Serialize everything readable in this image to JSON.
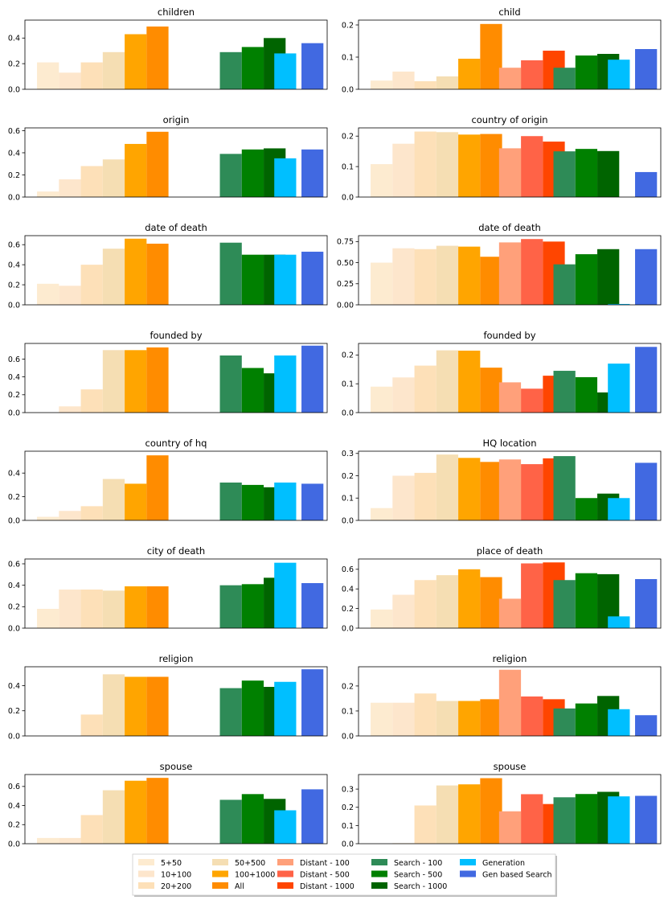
{
  "legend": [
    {
      "label": "5+50",
      "color": "#fdebd0"
    },
    {
      "label": "10+100",
      "color": "#fde6cc"
    },
    {
      "label": "20+200",
      "color": "#fde0b8"
    },
    {
      "label": "50+500",
      "color": "#f5deb3"
    },
    {
      "label": "100+1000",
      "color": "#ffa500"
    },
    {
      "label": "All",
      "color": "#ff8c00"
    },
    {
      "label": "Distant - 100",
      "color": "#ffa07a"
    },
    {
      "label": "Distant - 500",
      "color": "#ff6347"
    },
    {
      "label": "Distant - 1000",
      "color": "#ff4500"
    },
    {
      "label": "Search - 100",
      "color": "#2e8b57"
    },
    {
      "label": "Search - 500",
      "color": "#008000"
    },
    {
      "label": "Search - 1000",
      "color": "#006400"
    },
    {
      "label": "Generation",
      "color": "#00bfff"
    },
    {
      "label": "Gen based Search",
      "color": "#4169e1"
    }
  ],
  "chart_data": [
    {
      "type": "bar",
      "title": "children",
      "ylim": [
        0,
        0.54
      ],
      "yticks": [
        "0.0",
        "0.2",
        "0.4"
      ],
      "ytick_values": [
        0,
        0.2,
        0.4
      ],
      "values": [
        0.21,
        0.13,
        0.21,
        0.29,
        0.43,
        0.49,
        null,
        null,
        null,
        0.29,
        0.33,
        0.4,
        0.28,
        0.36
      ]
    },
    {
      "type": "bar",
      "title": "child",
      "ylim": [
        0,
        0.215
      ],
      "yticks": [
        "0.0",
        "0.1",
        "0.2"
      ],
      "ytick_values": [
        0,
        0.1,
        0.2
      ],
      "values": [
        0.027,
        0.055,
        0.025,
        0.04,
        0.095,
        0.203,
        0.067,
        0.09,
        0.12,
        0.067,
        0.105,
        0.11,
        0.092,
        0.125
      ]
    },
    {
      "type": "bar",
      "title": "origin",
      "ylim": [
        0,
        0.625
      ],
      "yticks": [
        "0.0",
        "0.2",
        "0.4",
        "0.6"
      ],
      "ytick_values": [
        0,
        0.2,
        0.4,
        0.6
      ],
      "values": [
        0.05,
        0.16,
        0.28,
        0.34,
        0.48,
        0.59,
        null,
        null,
        null,
        0.39,
        0.43,
        0.44,
        0.35,
        0.43
      ]
    },
    {
      "type": "bar",
      "title": "country of origin",
      "ylim": [
        0,
        0.227
      ],
      "yticks": [
        "0.0",
        "0.1",
        "0.2"
      ],
      "ytick_values": [
        0,
        0.1,
        0.2
      ],
      "values": [
        0.108,
        0.175,
        0.215,
        0.213,
        0.205,
        0.207,
        0.16,
        0.2,
        0.182,
        0.15,
        0.158,
        0.151,
        null,
        0.082
      ]
    },
    {
      "type": "bar",
      "title": "date of death",
      "ylim": [
        0,
        0.69
      ],
      "yticks": [
        "0.0",
        "0.2",
        "0.4",
        "0.6"
      ],
      "ytick_values": [
        0,
        0.2,
        0.4,
        0.6
      ],
      "values": [
        0.21,
        0.19,
        0.4,
        0.56,
        0.66,
        0.61,
        null,
        null,
        null,
        0.62,
        0.5,
        0.5,
        0.5,
        0.53
      ]
    },
    {
      "type": "bar",
      "title": "date of death",
      "ylim": [
        0,
        0.82
      ],
      "yticks": [
        "0.00",
        "0.25",
        "0.50",
        "0.75"
      ],
      "ytick_values": [
        0,
        0.25,
        0.5,
        0.75
      ],
      "values": [
        0.5,
        0.67,
        0.66,
        0.7,
        0.69,
        0.57,
        0.74,
        0.78,
        0.75,
        0.48,
        0.6,
        0.66,
        0.01,
        0.66
      ]
    },
    {
      "type": "bar",
      "title": "founded by",
      "ylim": [
        0,
        0.775
      ],
      "yticks": [
        "0.0",
        "0.2",
        "0.4",
        "0.6"
      ],
      "ytick_values": [
        0,
        0.2,
        0.4,
        0.6
      ],
      "values": [
        null,
        0.07,
        0.26,
        0.7,
        0.7,
        0.73,
        null,
        null,
        null,
        0.64,
        0.5,
        0.44,
        0.64,
        0.75
      ]
    },
    {
      "type": "bar",
      "title": "founded by",
      "ylim": [
        0,
        0.24
      ],
      "yticks": [
        "0.0",
        "0.1",
        "0.2"
      ],
      "ytick_values": [
        0,
        0.1,
        0.2
      ],
      "values": [
        0.09,
        0.122,
        0.163,
        0.216,
        0.215,
        0.156,
        0.105,
        0.083,
        0.128,
        0.145,
        0.123,
        0.07,
        0.17,
        0.228
      ]
    },
    {
      "type": "bar",
      "title": "country of hq",
      "ylim": [
        0,
        0.585
      ],
      "yticks": [
        "0.0",
        "0.2",
        "0.4"
      ],
      "ytick_values": [
        0,
        0.2,
        0.4
      ],
      "values": [
        0.03,
        0.08,
        0.12,
        0.35,
        0.31,
        0.55,
        null,
        null,
        null,
        0.32,
        0.3,
        0.28,
        0.32,
        0.31
      ]
    },
    {
      "type": "bar",
      "title": "HQ location",
      "ylim": [
        0,
        0.31
      ],
      "yticks": [
        "0.0",
        "0.1",
        "0.2",
        "0.3"
      ],
      "ytick_values": [
        0,
        0.1,
        0.2,
        0.3
      ],
      "values": [
        0.055,
        0.2,
        0.213,
        0.295,
        0.28,
        0.262,
        0.273,
        0.252,
        0.278,
        0.288,
        0.1,
        0.12,
        0.1,
        0.258
      ]
    },
    {
      "type": "bar",
      "title": "city of death",
      "ylim": [
        0,
        0.645
      ],
      "yticks": [
        "0.0",
        "0.2",
        "0.4",
        "0.6"
      ],
      "ytick_values": [
        0,
        0.2,
        0.4,
        0.6
      ],
      "values": [
        0.18,
        0.36,
        0.36,
        0.35,
        0.39,
        0.39,
        null,
        null,
        null,
        0.4,
        0.41,
        0.47,
        0.61,
        0.42
      ]
    },
    {
      "type": "bar",
      "title": "place of death",
      "ylim": [
        0,
        0.705
      ],
      "yticks": [
        "0.0",
        "0.2",
        "0.4",
        "0.6"
      ],
      "ytick_values": [
        0,
        0.2,
        0.4,
        0.6
      ],
      "values": [
        0.19,
        0.34,
        0.49,
        0.54,
        0.6,
        0.52,
        0.3,
        0.66,
        0.67,
        0.49,
        0.56,
        0.55,
        0.12,
        0.5
      ]
    },
    {
      "type": "bar",
      "title": "religion",
      "ylim": [
        0,
        0.55
      ],
      "yticks": [
        "0.0",
        "0.2",
        "0.4"
      ],
      "ytick_values": [
        0,
        0.2,
        0.4
      ],
      "values": [
        null,
        null,
        0.17,
        0.49,
        0.47,
        0.47,
        null,
        null,
        null,
        0.38,
        0.44,
        0.39,
        0.43,
        0.53
      ]
    },
    {
      "type": "bar",
      "title": "religion",
      "ylim": [
        0,
        0.277
      ],
      "yticks": [
        "0.0",
        "0.1",
        "0.2"
      ],
      "ytick_values": [
        0,
        0.1,
        0.2
      ],
      "values": [
        0.133,
        0.133,
        0.17,
        0.14,
        0.14,
        0.147,
        0.265,
        0.158,
        0.147,
        0.11,
        0.13,
        0.16,
        0.107,
        0.083
      ]
    },
    {
      "type": "bar",
      "title": "spouse",
      "ylim": [
        0,
        0.725
      ],
      "yticks": [
        "0.0",
        "0.2",
        "0.4",
        "0.6"
      ],
      "ytick_values": [
        0,
        0.2,
        0.4,
        0.6
      ],
      "values": [
        0.06,
        0.06,
        0.3,
        0.56,
        0.66,
        0.69,
        null,
        null,
        null,
        0.46,
        0.52,
        0.47,
        0.35,
        0.57
      ]
    },
    {
      "type": "bar",
      "title": "spouse",
      "ylim": [
        0,
        0.38
      ],
      "yticks": [
        "0.0",
        "0.1",
        "0.2",
        "0.3"
      ],
      "ytick_values": [
        0,
        0.1,
        0.2,
        0.3
      ],
      "values": [
        null,
        0.003,
        0.21,
        0.32,
        0.326,
        0.36,
        0.178,
        0.272,
        0.218,
        0.255,
        0.273,
        0.285,
        0.26,
        0.263
      ]
    }
  ]
}
